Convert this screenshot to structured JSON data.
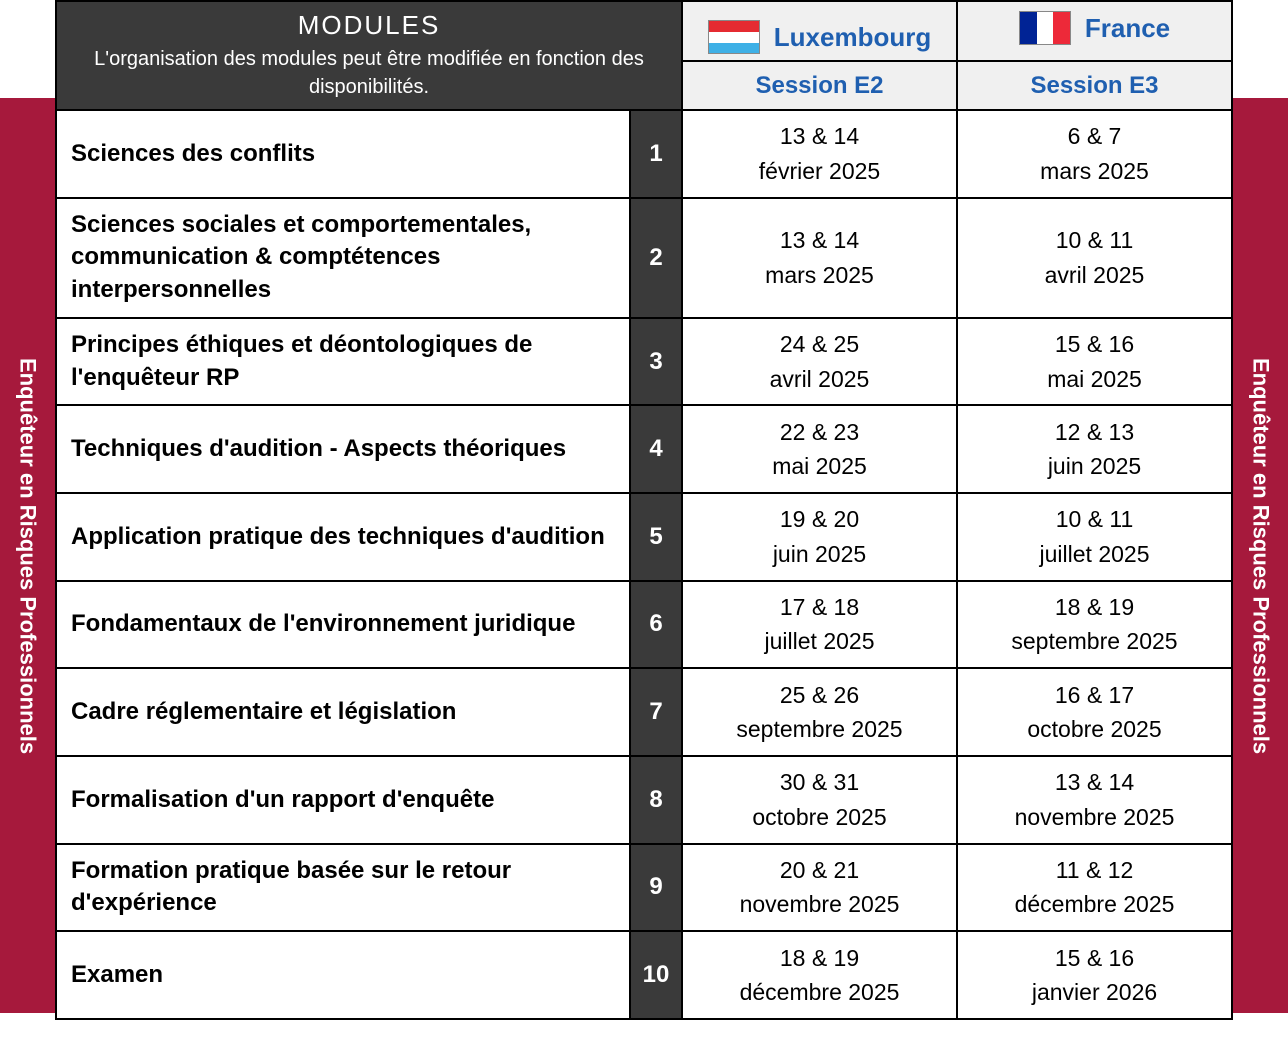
{
  "sideLabel": "Enquêteur en Risques Professionnels",
  "header": {
    "title": "MODULES",
    "subtitle": "L'organisation des modules peut être modifiée en fonction des disponibilités."
  },
  "columns": [
    {
      "country": "Luxembourg",
      "session": "Session E2",
      "flag": {
        "type": "h",
        "colors": [
          "#e52b31",
          "#ffffff",
          "#3eb0e6"
        ]
      }
    },
    {
      "country": "France",
      "session": "Session E3",
      "flag": {
        "type": "v",
        "colors": [
          "#002395",
          "#ffffff",
          "#ed2939"
        ]
      }
    }
  ],
  "rows": [
    {
      "num": "1",
      "name": "Sciences des conflits",
      "dates": [
        {
          "days": "13 & 14",
          "month": "février 2025"
        },
        {
          "days": "6 & 7",
          "month": "mars 2025"
        }
      ]
    },
    {
      "num": "2",
      "name": "Sciences sociales et comportementales, communication & comptétences interpersonnelles",
      "dates": [
        {
          "days": "13 & 14",
          "month": "mars 2025"
        },
        {
          "days": "10 & 11",
          "month": "avril 2025"
        }
      ]
    },
    {
      "num": "3",
      "name": "Principes éthiques et déontologiques de l'enquêteur RP",
      "dates": [
        {
          "days": "24 & 25",
          "month": "avril 2025"
        },
        {
          "days": "15 & 16",
          "month": "mai 2025"
        }
      ]
    },
    {
      "num": "4",
      "name": "Techniques d'audition - Aspects théoriques",
      "dates": [
        {
          "days": "22 & 23",
          "month": "mai 2025"
        },
        {
          "days": "12 & 13",
          "month": "juin 2025"
        }
      ]
    },
    {
      "num": "5",
      "name": "Application pratique des techniques d'audition",
      "dates": [
        {
          "days": "19 & 20",
          "month": "juin 2025"
        },
        {
          "days": "10 & 11",
          "month": "juillet 2025"
        }
      ]
    },
    {
      "num": "6",
      "name": "Fondamentaux de l'environnement juridique",
      "dates": [
        {
          "days": "17 & 18",
          "month": "juillet 2025"
        },
        {
          "days": "18 & 19",
          "month": "septembre 2025"
        }
      ]
    },
    {
      "num": "7",
      "name": "Cadre réglementaire et législation",
      "dates": [
        {
          "days": "25 & 26",
          "month": "septembre 2025"
        },
        {
          "days": "16 & 17",
          "month": "octobre 2025"
        }
      ]
    },
    {
      "num": "8",
      "name": "Formalisation d'un rapport d'enquête",
      "dates": [
        {
          "days": "30 & 31",
          "month": "octobre 2025"
        },
        {
          "days": "13 & 14",
          "month": "novembre 2025"
        }
      ]
    },
    {
      "num": "9",
      "name": "Formation pratique basée sur le retour d'expérience",
      "dates": [
        {
          "days": "20 & 21",
          "month": "novembre 2025"
        },
        {
          "days": "11 & 12",
          "month": "décembre 2025"
        }
      ]
    },
    {
      "num": "10",
      "name": "Examen",
      "dates": [
        {
          "days": "18 & 19",
          "month": "décembre 2025"
        },
        {
          "days": "15 & 16",
          "month": "janvier 2026"
        }
      ]
    }
  ],
  "style": {
    "sideBg": "#a6193c",
    "headerBg": "#3a3a3a",
    "sessionBg": "#f0f0f0",
    "linkColor": "#1f5fb0",
    "border": "#000000"
  }
}
